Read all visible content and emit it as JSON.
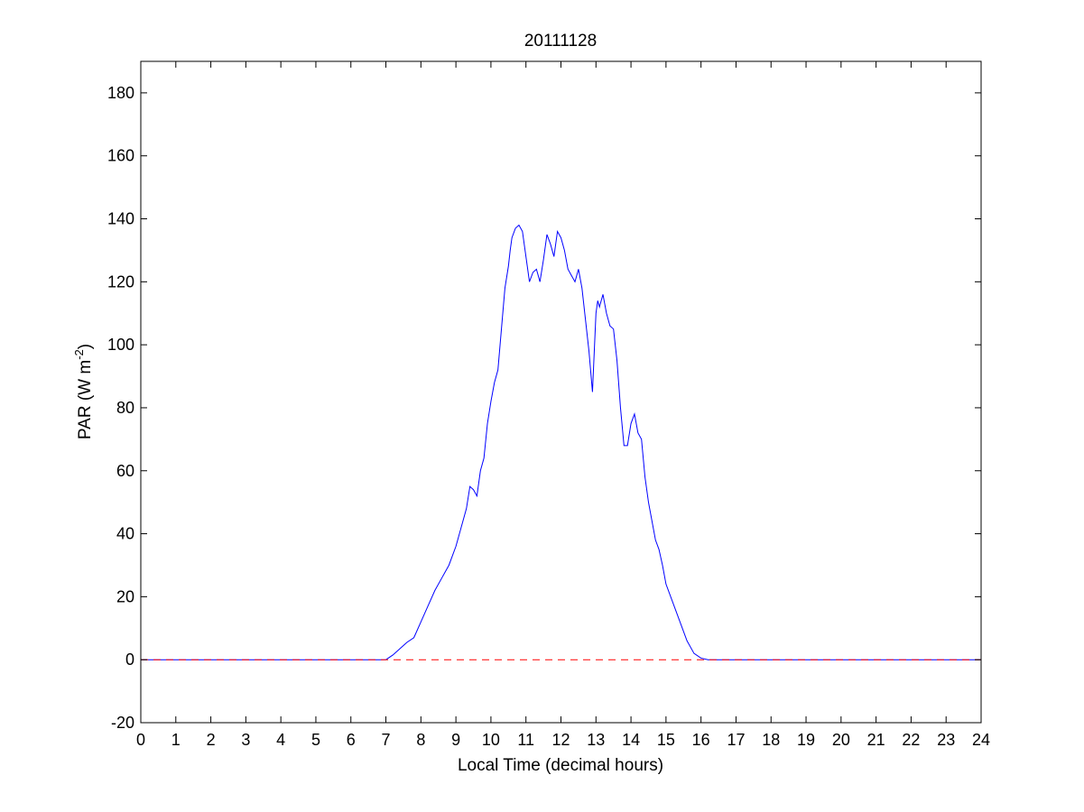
{
  "chart_data": {
    "type": "line",
    "title": "20111128",
    "xlabel": "Local Time (decimal hours)",
    "ylabel": "PAR (W m",
    "ylabel_sup": "-2",
    "ylabel_close": ")",
    "xlim": [
      0,
      24
    ],
    "ylim": [
      -20,
      190
    ],
    "xticks": [
      0,
      1,
      2,
      3,
      4,
      5,
      6,
      7,
      8,
      9,
      10,
      11,
      12,
      13,
      14,
      15,
      16,
      17,
      18,
      19,
      20,
      21,
      22,
      23,
      24
    ],
    "yticks": [
      -20,
      0,
      20,
      40,
      60,
      80,
      100,
      120,
      140,
      160,
      180
    ],
    "grid": false,
    "series": [
      {
        "color": "#0000ff",
        "style": "solid",
        "x": [
          0,
          7.0,
          7.2,
          7.4,
          7.6,
          7.8,
          8.0,
          8.2,
          8.4,
          8.6,
          8.8,
          9.0,
          9.2,
          9.3,
          9.4,
          9.5,
          9.6,
          9.7,
          9.8,
          9.9,
          10.0,
          10.1,
          10.2,
          10.3,
          10.4,
          10.5,
          10.55,
          10.6,
          10.7,
          10.8,
          10.9,
          11.0,
          11.1,
          11.2,
          11.3,
          11.4,
          11.5,
          11.6,
          11.7,
          11.8,
          11.9,
          12.0,
          12.1,
          12.2,
          12.3,
          12.4,
          12.5,
          12.6,
          12.7,
          12.8,
          12.9,
          13.0,
          13.05,
          13.1,
          13.2,
          13.3,
          13.4,
          13.5,
          13.6,
          13.7,
          13.8,
          13.9,
          14.0,
          14.1,
          14.2,
          14.3,
          14.4,
          14.5,
          14.6,
          14.7,
          14.8,
          14.9,
          15.0,
          15.2,
          15.4,
          15.6,
          15.8,
          16.0,
          16.2,
          16.4,
          16.6,
          16.8,
          17.0,
          17.2,
          24
        ],
        "y": [
          0,
          0,
          1.5,
          3.5,
          5.5,
          7,
          12,
          17,
          22,
          26,
          30,
          36,
          44,
          48,
          55,
          54,
          52,
          60,
          64,
          75,
          82,
          88,
          92,
          105,
          118,
          125,
          130,
          134,
          137,
          138,
          136,
          128,
          120,
          123,
          124,
          120,
          127,
          135,
          132,
          128,
          136,
          134,
          130,
          124,
          122,
          120,
          124,
          118,
          108,
          98,
          85,
          110,
          114,
          112,
          116,
          110,
          106,
          105,
          95,
          80,
          68,
          68,
          75,
          78,
          72,
          70,
          58,
          50,
          44,
          38,
          35,
          30,
          24,
          18,
          12,
          6,
          2,
          0.5,
          0,
          0,
          0,
          0,
          0,
          0,
          0
        ]
      },
      {
        "color": "#ff0000",
        "style": "dashed",
        "x": [
          0,
          24
        ],
        "y": [
          0,
          0
        ]
      }
    ]
  }
}
